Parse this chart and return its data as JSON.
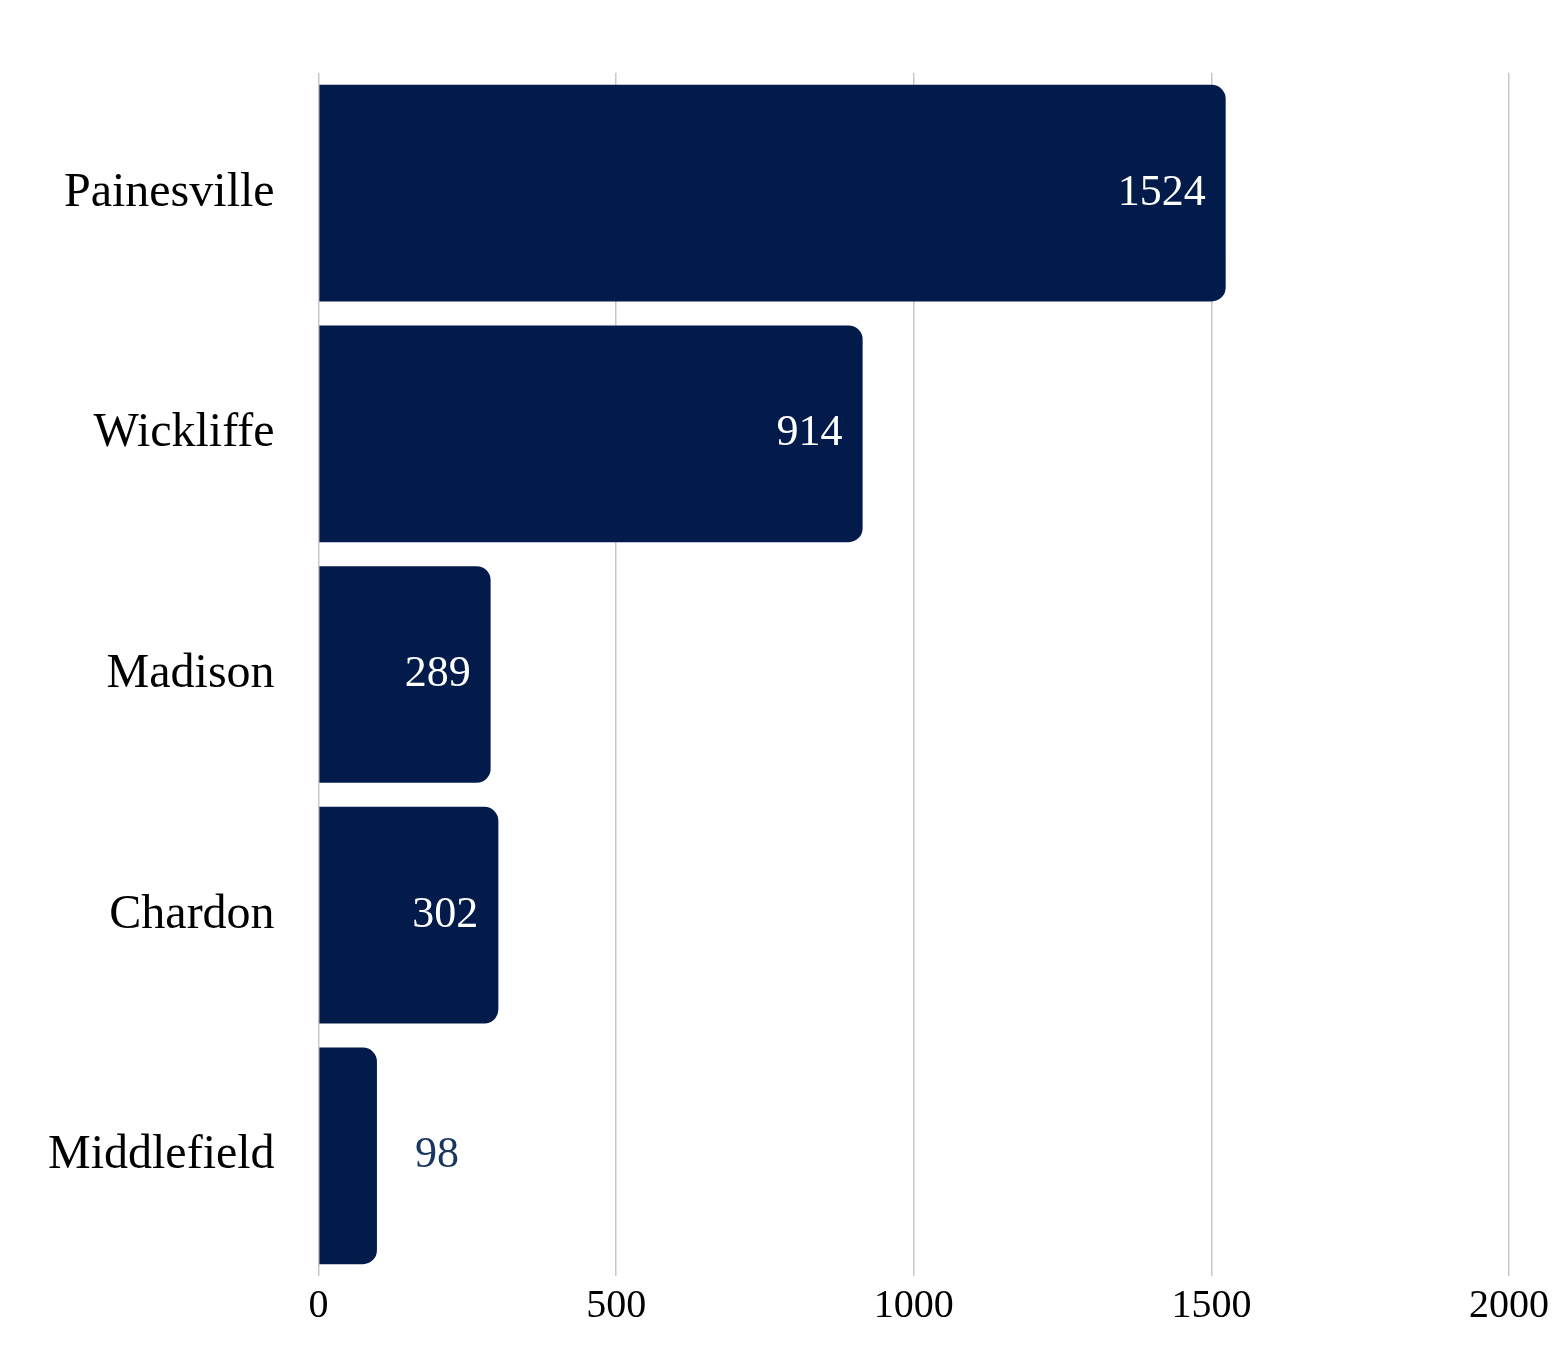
{
  "chart_data": {
    "type": "bar",
    "orientation": "horizontal",
    "categories": [
      "Painesville",
      "Wickliffe",
      "Madison",
      "Chardon",
      "Middlefield"
    ],
    "values": [
      1524,
      914,
      289,
      302,
      98
    ],
    "color": "#021b4b",
    "xlim": [
      0,
      2000
    ],
    "xticks": [
      0,
      500,
      1000,
      1500,
      2000
    ],
    "grid": "x",
    "data_labels": true
  }
}
